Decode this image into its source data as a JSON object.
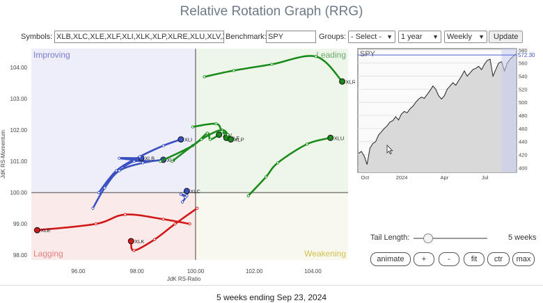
{
  "page": {
    "title": "Relative Rotation Graph (RRG)"
  },
  "toolbar": {
    "symbols_label": "Symbols:",
    "symbols_value": "XLB,XLC,XLE,XLF,XLI,XLK,XLP,XLRE,XLU,XLV,XL",
    "benchmark_label": "Benchmark:",
    "benchmark_value": "SPY",
    "groups_label": "Groups:",
    "groups_value": "- Select -",
    "period_value": "1 year",
    "interval_value": "Weekly",
    "update_label": "Update"
  },
  "colors": {
    "improving_bg": "#eeeefa",
    "leading_bg": "#eef6ea",
    "lagging_bg": "#faeaea",
    "weakening_bg": "#f8f8ee",
    "improving_text": "#7a7ad0",
    "leading_text": "#6aa86a",
    "lagging_text": "#e08080",
    "weakening_text": "#d4c050",
    "blue": "#3a4fc0",
    "green": "#1a8a1a",
    "red": "#d01818"
  },
  "chart_data": [
    {
      "type": "scatter",
      "title": "",
      "xlabel": "JdK RS-Ratio",
      "ylabel": "JdK RS-Momentum",
      "xlim": [
        94.4,
        105.2
      ],
      "ylim": [
        97.85,
        104.6
      ],
      "x_ticks": [
        "96.00",
        "98.00",
        "100.00",
        "102.00",
        "104.00"
      ],
      "y_ticks": [
        "98.00",
        "99.00",
        "100.00",
        "101.00",
        "102.00",
        "103.00",
        "104.00"
      ],
      "quadrants": [
        "Improving",
        "Leading",
        "Lagging",
        "Weakening"
      ],
      "series": [
        {
          "name": "XLB",
          "color": "blue",
          "points": [
            [
              97.5,
              100.8
            ],
            [
              97.9,
              101.0
            ],
            [
              98.4,
              101.0
            ],
            [
              97.4,
              101.1
            ],
            [
              98.15,
              101.1
            ]
          ]
        },
        {
          "name": "XLI",
          "color": "blue",
          "points": [
            [
              96.7,
              100.0
            ],
            [
              97.3,
              100.7
            ],
            [
              98.1,
              101.15
            ],
            [
              98.9,
              101.5
            ],
            [
              99.5,
              101.7
            ]
          ]
        },
        {
          "name": "XLY",
          "color": "blue",
          "points": [
            [
              96.5,
              99.5
            ],
            [
              96.9,
              100.15
            ],
            [
              97.4,
              100.7
            ],
            [
              98.2,
              100.95
            ],
            [
              98.9,
              101.05
            ]
          ]
        },
        {
          "name": "XLC",
          "color": "blue",
          "points": [
            [
              99.55,
              99.7
            ],
            [
              99.65,
              99.85
            ],
            [
              99.5,
              99.95
            ],
            [
              99.7,
              99.9
            ],
            [
              99.7,
              100.05
            ]
          ]
        },
        {
          "name": "XLE",
          "color": "red",
          "points": [
            [
              99.8,
              99.0
            ],
            [
              98.9,
              99.15
            ],
            [
              97.6,
              99.3
            ],
            [
              96.6,
              99.0
            ],
            [
              94.6,
              98.8
            ]
          ]
        },
        {
          "name": "XLK",
          "color": "red",
          "points": [
            [
              100.05,
              99.5
            ],
            [
              99.3,
              99.0
            ],
            [
              98.6,
              98.5
            ],
            [
              97.9,
              98.15
            ],
            [
              97.8,
              98.45
            ]
          ]
        },
        {
          "name": "XLRE",
          "color": "green",
          "points": [
            [
              100.3,
              103.7
            ],
            [
              101.3,
              103.9
            ],
            [
              102.6,
              104.1
            ],
            [
              104.1,
              104.35
            ],
            [
              105.0,
              103.55
            ]
          ]
        },
        {
          "name": "XLU",
          "color": "green",
          "points": [
            [
              101.8,
              99.9
            ],
            [
              102.4,
              100.5
            ],
            [
              102.8,
              100.95
            ],
            [
              103.8,
              101.55
            ],
            [
              104.6,
              101.75
            ]
          ]
        },
        {
          "name": "XLV",
          "color": "green",
          "points": [
            [
              98.8,
              101.0
            ],
            [
              99.9,
              101.5
            ],
            [
              100.4,
              101.9
            ],
            [
              100.5,
              101.7
            ],
            [
              100.8,
              101.85
            ]
          ]
        },
        {
          "name": "XLF",
          "color": "green",
          "points": [
            [
              99.2,
              101.0
            ],
            [
              100.2,
              101.7
            ],
            [
              100.9,
              102.0
            ],
            [
              101.15,
              101.75
            ],
            [
              101.05,
              101.75
            ]
          ]
        },
        {
          "name": "XLP",
          "color": "green",
          "points": [
            [
              99.9,
              102.1
            ],
            [
              100.7,
              102.2
            ],
            [
              100.9,
              101.95
            ],
            [
              101.1,
              101.85
            ],
            [
              101.2,
              101.7
            ]
          ]
        }
      ]
    },
    {
      "type": "area",
      "title": "SPY",
      "last_value_label": "572.30",
      "ylim": [
        393,
        582
      ],
      "y_ticks": [
        "400",
        "420",
        "440",
        "460",
        "480",
        "500",
        "520",
        "540",
        "560",
        "580"
      ],
      "x_labels": [
        "Oct",
        "2024",
        "Apr",
        "Jul"
      ],
      "values": [
        422,
        425,
        418,
        405,
        430,
        437,
        440,
        450,
        455,
        460,
        464,
        470,
        472,
        478,
        473,
        482,
        486,
        484,
        490,
        494,
        500,
        505,
        508,
        506,
        512,
        518,
        525,
        520,
        510,
        505,
        510,
        520,
        525,
        530,
        526,
        533,
        540,
        548,
        540,
        545,
        550,
        552,
        555,
        550,
        558,
        564,
        566,
        540,
        550,
        560,
        562,
        548,
        560,
        566,
        570,
        574
      ]
    }
  ],
  "tail": {
    "label": "Tail Length:",
    "value": 5,
    "value_text": "5 weeks"
  },
  "controls": {
    "animate": "animate",
    "plus": "+",
    "minus": "-",
    "fit": "fit",
    "ctr": "ctr",
    "max": "max"
  },
  "footer": {
    "text": "5 weeks ending Sep 23, 2024"
  }
}
